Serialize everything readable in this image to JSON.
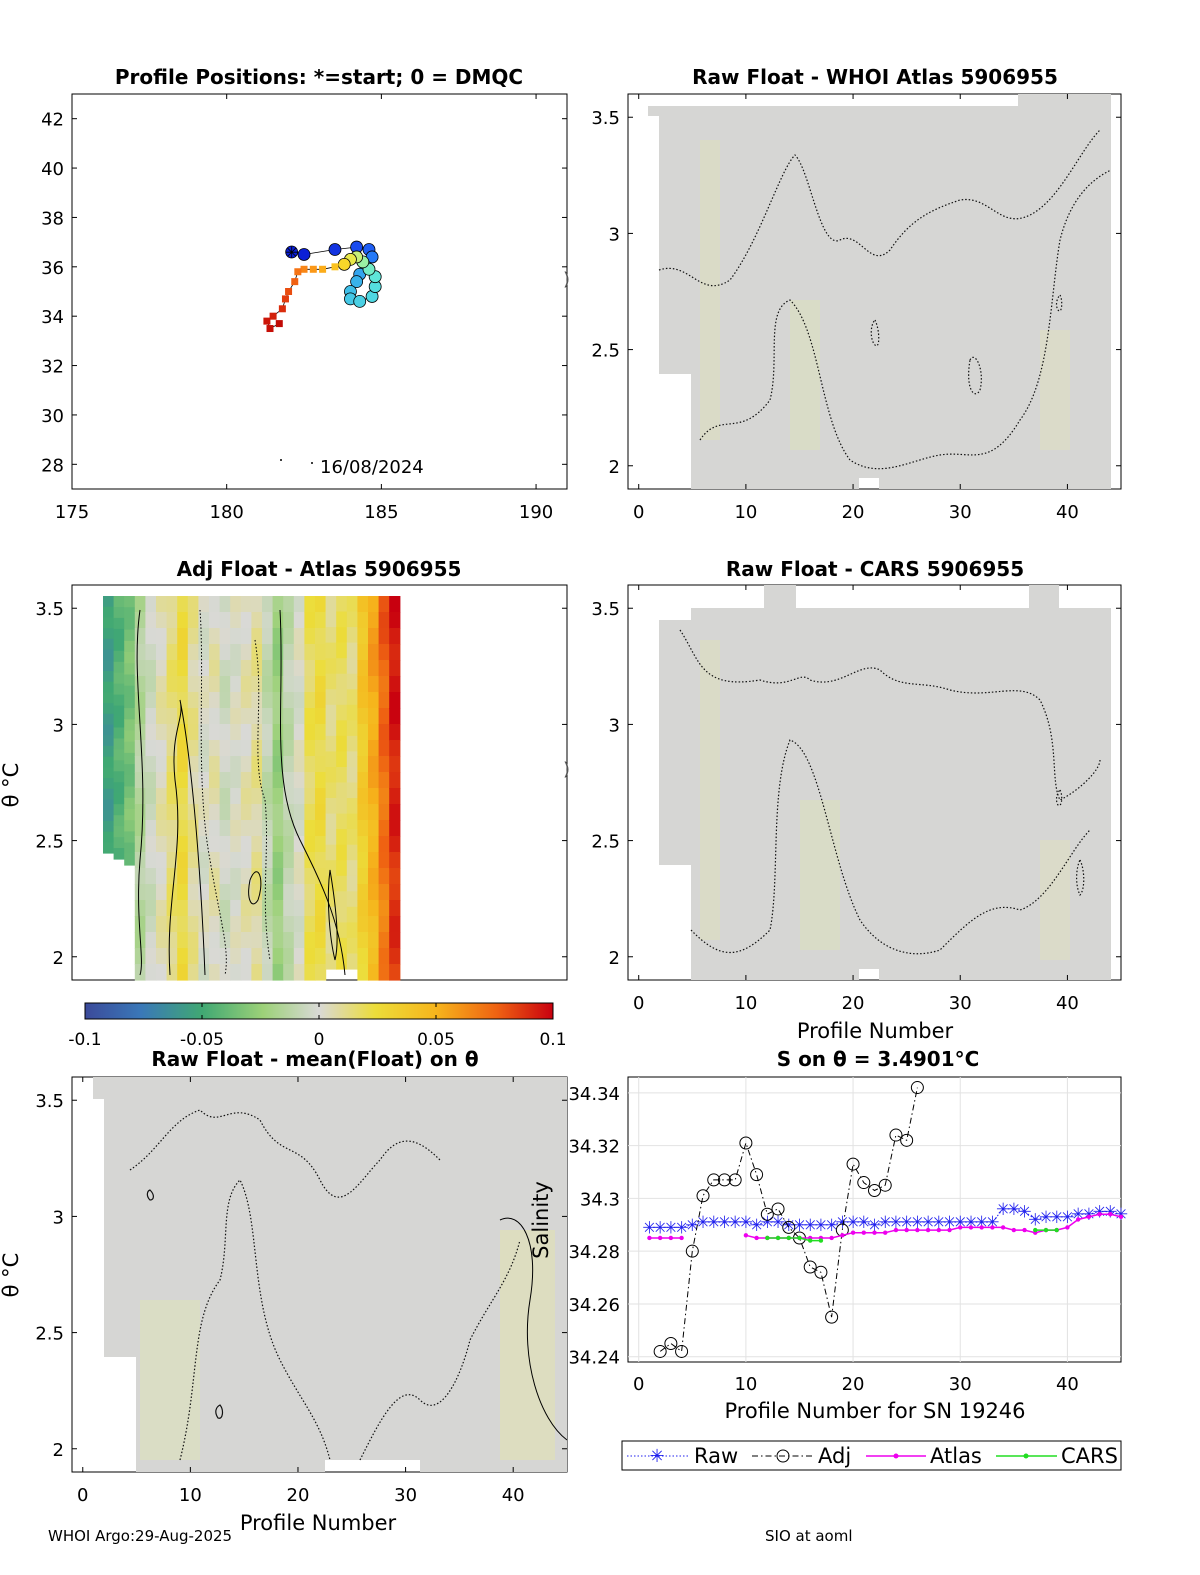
{
  "chart_data": [
    {
      "id": "positions",
      "type": "scatter",
      "title": "Profile Positions: *=start; 0 = DMQC",
      "xlabel": "",
      "ylabel": "",
      "xlim": [
        175,
        191
      ],
      "ylim": [
        27,
        43
      ],
      "xticks": [
        175,
        180,
        185,
        190
      ],
      "yticks": [
        28,
        30,
        32,
        34,
        36,
        38,
        40,
        42
      ],
      "date_label": "16/08/2024",
      "start_marker": {
        "x": 182.1,
        "y": 36.6
      },
      "track": [
        {
          "x": 182.1,
          "y": 36.6,
          "color": "#0b1fd6"
        },
        {
          "x": 182.5,
          "y": 36.5,
          "color": "#0b1fd6"
        },
        {
          "x": 183.5,
          "y": 36.7,
          "color": "#1233e0"
        },
        {
          "x": 184.2,
          "y": 36.8,
          "color": "#1a4bee"
        },
        {
          "x": 184.6,
          "y": 36.7,
          "color": "#1f5ef4"
        },
        {
          "x": 184.7,
          "y": 36.4,
          "color": "#2479f7"
        },
        {
          "x": 184.5,
          "y": 36.0,
          "color": "#2c91f2"
        },
        {
          "x": 184.3,
          "y": 35.7,
          "color": "#33a4ee"
        },
        {
          "x": 184.2,
          "y": 35.4,
          "color": "#38b2ea"
        },
        {
          "x": 184.0,
          "y": 35.0,
          "color": "#3fbfe8"
        },
        {
          "x": 184.0,
          "y": 34.7,
          "color": "#45c8e6"
        },
        {
          "x": 184.3,
          "y": 34.6,
          "color": "#4bd0e4"
        },
        {
          "x": 184.7,
          "y": 34.8,
          "color": "#4fd8e2"
        },
        {
          "x": 184.8,
          "y": 35.2,
          "color": "#55dfe0"
        },
        {
          "x": 184.8,
          "y": 35.6,
          "color": "#5ee6d9"
        },
        {
          "x": 184.6,
          "y": 35.9,
          "color": "#74ecc6"
        },
        {
          "x": 184.4,
          "y": 36.2,
          "color": "#9bf0a4"
        },
        {
          "x": 184.2,
          "y": 36.4,
          "color": "#c6ee7a"
        },
        {
          "x": 184.0,
          "y": 36.3,
          "color": "#e8e84a"
        },
        {
          "x": 183.8,
          "y": 36.1,
          "color": "#f7d72a"
        },
        {
          "x": 183.5,
          "y": 36.0,
          "color": "#fbc21f"
        },
        {
          "x": 183.1,
          "y": 35.9,
          "color": "#fcad1a"
        },
        {
          "x": 182.8,
          "y": 35.9,
          "color": "#fb9818"
        },
        {
          "x": 182.5,
          "y": 35.9,
          "color": "#f88616"
        },
        {
          "x": 182.3,
          "y": 35.8,
          "color": "#f57314"
        },
        {
          "x": 182.2,
          "y": 35.4,
          "color": "#f06012"
        },
        {
          "x": 182.0,
          "y": 35.0,
          "color": "#e94d10"
        },
        {
          "x": 181.9,
          "y": 34.7,
          "color": "#e23c0e"
        },
        {
          "x": 181.8,
          "y": 34.3,
          "color": "#da2c0c"
        },
        {
          "x": 181.5,
          "y": 34.0,
          "color": "#d2200a"
        },
        {
          "x": 181.3,
          "y": 33.8,
          "color": "#cc1508"
        },
        {
          "x": 181.4,
          "y": 33.5,
          "color": "#c60e06"
        },
        {
          "x": 181.7,
          "y": 33.7,
          "color": "#c00a05"
        }
      ]
    },
    {
      "id": "raw_atlas",
      "type": "heatmap",
      "title": "Raw Float - WHOI Atlas  5906955",
      "xlabel": "",
      "ylabel": "",
      "xlim": [
        -1,
        45
      ],
      "ylim": [
        1.9,
        3.6
      ],
      "xticks": [
        0,
        10,
        20,
        30,
        40
      ],
      "yticks": [
        2,
        2.5,
        3,
        3.5
      ]
    },
    {
      "id": "adj_atlas",
      "type": "heatmap",
      "title": "Adj Float - Atlas  5906955",
      "xlabel": "",
      "ylabel": "θ °C",
      "xlim": [
        -1,
        45
      ],
      "ylim": [
        1.9,
        3.6
      ],
      "xticks": [],
      "yticks": [
        2,
        2.5,
        3,
        3.5
      ],
      "colorbar": {
        "range": [
          -0.1,
          0.1
        ],
        "ticks": [
          "-0.1",
          "-0.05",
          "0",
          "0.05",
          "0.1"
        ]
      },
      "column_values": [
        -0.055,
        -0.045,
        -0.035,
        -0.015,
        -0.005,
        0.005,
        0.015,
        0.025,
        0.01,
        0.0,
        0.005,
        -0.005,
        0.0,
        0.005,
        0.01,
        -0.01,
        -0.025,
        -0.01,
        0.0,
        0.02,
        0.025,
        0.015,
        0.02,
        0.015,
        0.03,
        0.045,
        0.065,
        0.085
      ]
    },
    {
      "id": "raw_cars",
      "type": "heatmap",
      "title": "Raw Float - CARS  5906955",
      "xlabel": "Profile Number",
      "ylabel": "",
      "xlim": [
        -1,
        45
      ],
      "ylim": [
        1.9,
        3.6
      ],
      "xticks": [
        0,
        10,
        20,
        30,
        40
      ],
      "yticks": [
        2,
        2.5,
        3,
        3.5
      ]
    },
    {
      "id": "raw_mean",
      "type": "heatmap",
      "title": "Raw Float - mean(Float) on θ",
      "xlabel": "Profile Number",
      "ylabel": "θ °C",
      "xlim": [
        -1,
        45
      ],
      "ylim": [
        1.9,
        3.6
      ],
      "xticks": [
        0,
        10,
        20,
        30,
        40
      ],
      "yticks": [
        2,
        2.5,
        3,
        3.5
      ]
    },
    {
      "id": "salinity",
      "type": "line",
      "title": "S on θ = 3.4901°C",
      "xlabel": "Profile Number for SN 19246",
      "ylabel": "Salinity",
      "xlim": [
        -1,
        45
      ],
      "ylim": [
        34.238,
        34.346
      ],
      "xticks": [
        0,
        10,
        20,
        30,
        40
      ],
      "yticks": [
        "34.24",
        "34.26",
        "34.28",
        "34.3",
        "34.32",
        "34.34"
      ],
      "legend": [
        "Raw",
        "Adj",
        "Atlas",
        "CARS"
      ],
      "series": [
        {
          "name": "Raw",
          "color": "#2020ee",
          "x": [
            1,
            2,
            3,
            4,
            5,
            6,
            7,
            8,
            9,
            10,
            11,
            12,
            13,
            14,
            15,
            16,
            17,
            18,
            19,
            20,
            21,
            22,
            23,
            24,
            25,
            26,
            27,
            28,
            29,
            30,
            31,
            32,
            33,
            34,
            35,
            36,
            37,
            38,
            39,
            40,
            41,
            42,
            43,
            44,
            45
          ],
          "y": [
            34.289,
            34.289,
            34.289,
            34.289,
            34.29,
            34.291,
            34.291,
            34.291,
            34.291,
            34.291,
            34.29,
            34.291,
            34.291,
            34.29,
            34.29,
            34.29,
            34.29,
            34.29,
            34.291,
            34.291,
            34.291,
            34.29,
            34.291,
            34.291,
            34.291,
            34.291,
            34.291,
            34.291,
            34.291,
            34.291,
            34.291,
            34.291,
            34.291,
            34.296,
            34.296,
            34.295,
            34.292,
            34.293,
            34.293,
            34.293,
            34.294,
            34.294,
            34.295,
            34.295,
            34.294
          ]
        },
        {
          "name": "Adj",
          "color": "#000000",
          "x": [
            2,
            3,
            4,
            5,
            6,
            7,
            8,
            9,
            10,
            11,
            12,
            13,
            14,
            15,
            16,
            17,
            18,
            19,
            20,
            21,
            22,
            23,
            24,
            25,
            26
          ],
          "y": [
            34.242,
            34.245,
            34.242,
            34.28,
            34.301,
            34.307,
            34.307,
            34.307,
            34.321,
            34.309,
            34.294,
            34.296,
            34.289,
            34.285,
            34.274,
            34.272,
            34.255,
            34.288,
            34.313,
            34.306,
            34.303,
            34.305,
            34.324,
            34.322,
            34.342
          ]
        },
        {
          "name": "Atlas",
          "color": "#ee00ee",
          "x": [
            1,
            2,
            3,
            4,
            10,
            11,
            12,
            13,
            14,
            15,
            16,
            17,
            18,
            19,
            20,
            21,
            22,
            23,
            24,
            25,
            26,
            27,
            28,
            29,
            30,
            31,
            32,
            33,
            34,
            35,
            36,
            37,
            38,
            39,
            40,
            41,
            42,
            43,
            44,
            45
          ],
          "y": [
            34.285,
            34.285,
            34.285,
            34.285,
            34.286,
            34.285,
            34.285,
            34.285,
            34.285,
            34.285,
            34.285,
            34.285,
            34.285,
            34.286,
            34.287,
            34.287,
            34.287,
            34.287,
            34.288,
            34.288,
            34.288,
            34.288,
            34.288,
            34.288,
            34.289,
            34.289,
            34.289,
            34.289,
            34.289,
            34.288,
            34.288,
            34.287,
            34.288,
            34.288,
            34.289,
            34.292,
            34.293,
            34.294,
            34.294,
            34.293
          ]
        },
        {
          "name": "CARS",
          "color": "#22dd22",
          "x": [
            12,
            13,
            14,
            15,
            16,
            17,
            37,
            38,
            39
          ],
          "y": [
            34.285,
            34.285,
            34.285,
            34.285,
            34.284,
            34.284,
            34.288,
            34.288,
            34.288
          ]
        }
      ]
    }
  ],
  "footer": {
    "left": "WHOI Argo:29-Aug-2025",
    "right": "SIO at aoml"
  }
}
